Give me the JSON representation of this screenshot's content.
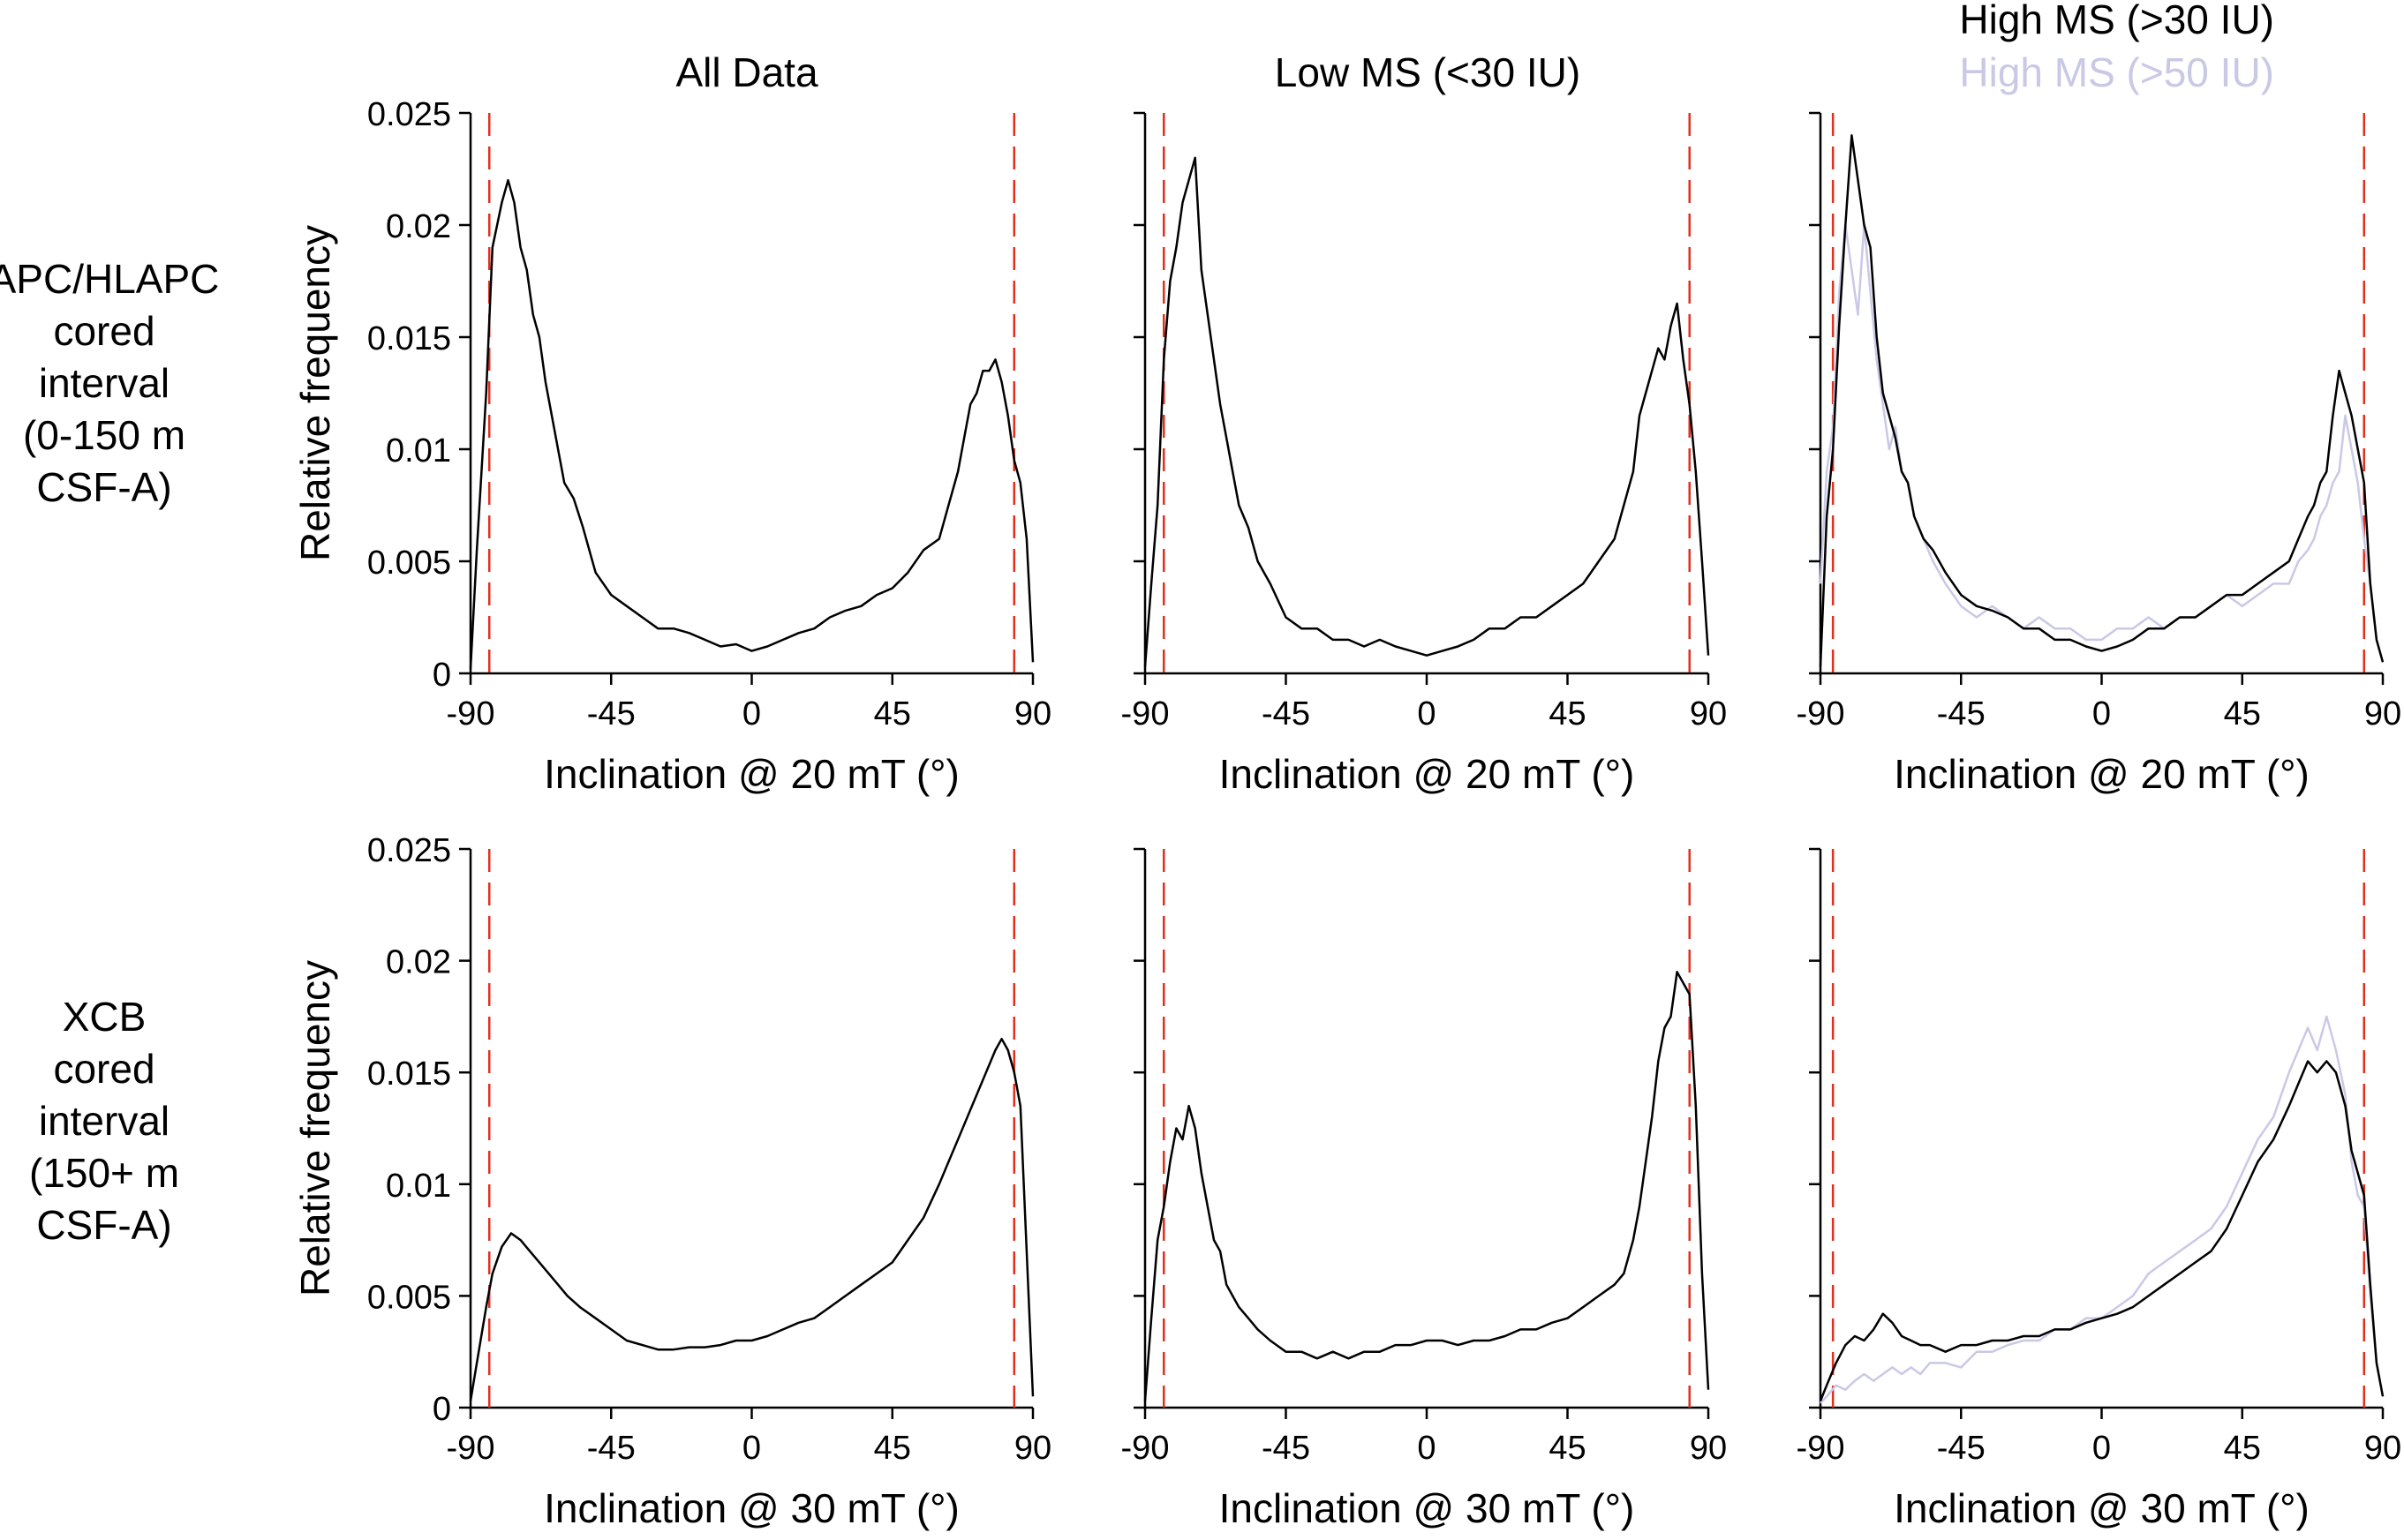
{
  "figure": {
    "row_labels": [
      [
        "APC/HLAPC",
        "cored",
        "interval",
        "(0-150 m",
        "CSF-A)"
      ],
      [
        "XCB",
        "cored",
        "interval",
        "(150+ m",
        "CSF-A)"
      ]
    ],
    "column_titles": [
      "All Data",
      "Low MS (<30 IU)"
    ],
    "legend": [
      {
        "label": "High MS (>30 IU)",
        "color": "#000000"
      },
      {
        "label": "High MS (>50 IU)",
        "color": "#c9c9e6"
      }
    ],
    "colors": {
      "line": "#000000",
      "line_alt": "#c9c9e6",
      "reference": "#e0301e"
    }
  },
  "chart_data": [
    {
      "type": "line",
      "row": 0,
      "col": 0,
      "xlabel": "Inclination @ 20 mT (°)",
      "ylabel": "Relative frequency",
      "xlim": [
        -90,
        90
      ],
      "ylim": [
        0,
        0.025
      ],
      "xticks": [
        "-90",
        "-45",
        "0",
        "45",
        "90"
      ],
      "yticks": [
        "0",
        "0.005",
        "0.01",
        "0.015",
        "0.02",
        "0.025"
      ],
      "reference_lines": [
        -84,
        84
      ],
      "series": [
        {
          "name": "All Data",
          "color": "#000000",
          "x": [
            -90,
            -88,
            -85,
            -83,
            -80,
            -78,
            -76,
            -74,
            -72,
            -70,
            -68,
            -66,
            -64,
            -62,
            -60,
            -57,
            -54,
            -50,
            -45,
            -40,
            -35,
            -30,
            -25,
            -20,
            -15,
            -10,
            -5,
            0,
            5,
            10,
            15,
            20,
            25,
            30,
            35,
            40,
            45,
            50,
            55,
            60,
            63,
            66,
            68,
            70,
            72,
            74,
            76,
            78,
            80,
            82,
            84,
            86,
            88,
            90
          ],
          "y": [
            0.0002,
            0.0055,
            0.0125,
            0.019,
            0.021,
            0.022,
            0.021,
            0.019,
            0.018,
            0.016,
            0.015,
            0.013,
            0.0115,
            0.01,
            0.0085,
            0.0078,
            0.0065,
            0.0045,
            0.0035,
            0.003,
            0.0025,
            0.002,
            0.002,
            0.0018,
            0.0015,
            0.0012,
            0.0013,
            0.001,
            0.0012,
            0.0015,
            0.0018,
            0.002,
            0.0025,
            0.0028,
            0.003,
            0.0035,
            0.0038,
            0.0045,
            0.0055,
            0.006,
            0.0075,
            0.009,
            0.0105,
            0.012,
            0.0125,
            0.0135,
            0.0135,
            0.014,
            0.013,
            0.0115,
            0.0095,
            0.0085,
            0.006,
            0.0005
          ]
        }
      ]
    },
    {
      "type": "line",
      "row": 0,
      "col": 1,
      "xlabel": "Inclination @ 20 mT (°)",
      "ylabel": "",
      "xlim": [
        -90,
        90
      ],
      "ylim": [
        0,
        0.025
      ],
      "xticks": [
        "-90",
        "-45",
        "0",
        "45",
        "90"
      ],
      "yticks": [],
      "reference_lines": [
        -84,
        84
      ],
      "series": [
        {
          "name": "Low MS (<30 IU)",
          "color": "#000000",
          "x": [
            -90,
            -88,
            -86,
            -84,
            -82,
            -80,
            -78,
            -76,
            -74,
            -72,
            -70,
            -68,
            -66,
            -64,
            -62,
            -60,
            -57,
            -54,
            -50,
            -45,
            -40,
            -35,
            -30,
            -25,
            -20,
            -15,
            -10,
            -5,
            0,
            5,
            10,
            15,
            20,
            25,
            30,
            35,
            40,
            45,
            50,
            55,
            60,
            63,
            66,
            68,
            70,
            72,
            74,
            76,
            78,
            80,
            82,
            84,
            86,
            88,
            90
          ],
          "y": [
            0.0003,
            0.004,
            0.0075,
            0.014,
            0.0175,
            0.019,
            0.021,
            0.022,
            0.023,
            0.018,
            0.016,
            0.014,
            0.012,
            0.0105,
            0.009,
            0.0075,
            0.0065,
            0.005,
            0.004,
            0.0025,
            0.002,
            0.002,
            0.0015,
            0.0015,
            0.0012,
            0.0015,
            0.0012,
            0.001,
            0.0008,
            0.001,
            0.0012,
            0.0015,
            0.002,
            0.002,
            0.0025,
            0.0025,
            0.003,
            0.0035,
            0.004,
            0.005,
            0.006,
            0.0075,
            0.009,
            0.0115,
            0.0125,
            0.0135,
            0.0145,
            0.014,
            0.0155,
            0.0165,
            0.014,
            0.012,
            0.009,
            0.005,
            0.0008
          ]
        }
      ]
    },
    {
      "type": "line",
      "row": 0,
      "col": 2,
      "xlabel": "Inclination @ 20 mT (°)",
      "ylabel": "",
      "xlim": [
        -90,
        90
      ],
      "ylim": [
        0,
        0.025
      ],
      "xticks": [
        "-90",
        "-45",
        "0",
        "45",
        "90"
      ],
      "yticks": [],
      "reference_lines": [
        -86,
        84
      ],
      "series": [
        {
          "name": "High MS (>50 IU)",
          "color": "#c9c9e6",
          "x": [
            -90,
            -88,
            -86,
            -84,
            -82,
            -80,
            -78,
            -76,
            -74,
            -72,
            -70,
            -68,
            -66,
            -64,
            -62,
            -60,
            -57,
            -54,
            -50,
            -45,
            -40,
            -35,
            -30,
            -25,
            -20,
            -15,
            -10,
            -5,
            0,
            5,
            10,
            15,
            20,
            25,
            30,
            35,
            40,
            45,
            50,
            55,
            60,
            63,
            66,
            68,
            70,
            72,
            74,
            76,
            78,
            80,
            82,
            84,
            86,
            88,
            90
          ],
          "y": [
            0.004,
            0.009,
            0.011,
            0.017,
            0.02,
            0.018,
            0.016,
            0.02,
            0.017,
            0.014,
            0.012,
            0.01,
            0.011,
            0.009,
            0.0085,
            0.007,
            0.006,
            0.005,
            0.004,
            0.003,
            0.0025,
            0.003,
            0.0025,
            0.002,
            0.0025,
            0.002,
            0.002,
            0.0015,
            0.0015,
            0.002,
            0.002,
            0.0025,
            0.002,
            0.0025,
            0.0025,
            0.003,
            0.0035,
            0.003,
            0.0035,
            0.004,
            0.004,
            0.005,
            0.0055,
            0.006,
            0.007,
            0.0075,
            0.0085,
            0.009,
            0.0115,
            0.01,
            0.0085,
            0.006,
            0.004,
            0.0015,
            0.0005
          ]
        },
        {
          "name": "High MS (>30 IU)",
          "color": "#000000",
          "x": [
            -90,
            -88,
            -86,
            -84,
            -82,
            -80,
            -78,
            -76,
            -74,
            -72,
            -70,
            -68,
            -66,
            -64,
            -62,
            -60,
            -57,
            -54,
            -50,
            -45,
            -40,
            -35,
            -30,
            -25,
            -20,
            -15,
            -10,
            -5,
            0,
            5,
            10,
            15,
            20,
            25,
            30,
            35,
            40,
            45,
            50,
            55,
            60,
            63,
            66,
            68,
            70,
            72,
            74,
            76,
            78,
            80,
            82,
            84,
            86,
            88,
            90
          ],
          "y": [
            0.0003,
            0.007,
            0.01,
            0.0155,
            0.02,
            0.024,
            0.022,
            0.02,
            0.019,
            0.015,
            0.0125,
            0.0115,
            0.0105,
            0.009,
            0.0085,
            0.007,
            0.006,
            0.0055,
            0.0045,
            0.0035,
            0.003,
            0.0028,
            0.0025,
            0.002,
            0.002,
            0.0015,
            0.0015,
            0.0012,
            0.001,
            0.0012,
            0.0015,
            0.002,
            0.002,
            0.0025,
            0.0025,
            0.003,
            0.0035,
            0.0035,
            0.004,
            0.0045,
            0.005,
            0.006,
            0.007,
            0.0075,
            0.0085,
            0.009,
            0.0115,
            0.0135,
            0.0125,
            0.0115,
            0.01,
            0.0085,
            0.004,
            0.0015,
            0.0005
          ]
        }
      ]
    },
    {
      "type": "line",
      "row": 1,
      "col": 0,
      "xlabel": "Inclination @ 30 mT (°)",
      "ylabel": "Relative frequency",
      "xlim": [
        -90,
        90
      ],
      "ylim": [
        0,
        0.025
      ],
      "xticks": [
        "-90",
        "-45",
        "0",
        "45",
        "90"
      ],
      "yticks": [
        "0",
        "0.005",
        "0.01",
        "0.015",
        "0.02",
        "0.025"
      ],
      "reference_lines": [
        -84,
        84
      ],
      "series": [
        {
          "name": "All Data",
          "color": "#000000",
          "x": [
            -90,
            -88,
            -85,
            -83,
            -80,
            -77,
            -74,
            -71,
            -68,
            -65,
            -62,
            -59,
            -55,
            -50,
            -45,
            -40,
            -35,
            -30,
            -25,
            -20,
            -15,
            -10,
            -5,
            0,
            5,
            10,
            15,
            20,
            25,
            30,
            35,
            40,
            45,
            50,
            55,
            60,
            63,
            66,
            69,
            72,
            75,
            78,
            80,
            82,
            84,
            86,
            88,
            90
          ],
          "y": [
            0.0003,
            0.002,
            0.0045,
            0.006,
            0.0072,
            0.0078,
            0.0075,
            0.007,
            0.0065,
            0.006,
            0.0055,
            0.005,
            0.0045,
            0.004,
            0.0035,
            0.003,
            0.0028,
            0.0026,
            0.0026,
            0.0027,
            0.0027,
            0.0028,
            0.003,
            0.003,
            0.0032,
            0.0035,
            0.0038,
            0.004,
            0.0045,
            0.005,
            0.0055,
            0.006,
            0.0065,
            0.0075,
            0.0085,
            0.01,
            0.011,
            0.012,
            0.013,
            0.014,
            0.015,
            0.016,
            0.0165,
            0.016,
            0.015,
            0.0135,
            0.007,
            0.0005
          ]
        }
      ]
    },
    {
      "type": "line",
      "row": 1,
      "col": 1,
      "xlabel": "Inclination @ 30 mT (°)",
      "ylabel": "",
      "xlim": [
        -90,
        90
      ],
      "ylim": [
        0,
        0.025
      ],
      "xticks": [
        "-90",
        "-45",
        "0",
        "45",
        "90"
      ],
      "yticks": [],
      "reference_lines": [
        -84,
        84
      ],
      "series": [
        {
          "name": "Low MS (<30 IU)",
          "color": "#000000",
          "x": [
            -90,
            -88,
            -86,
            -84,
            -82,
            -80,
            -78,
            -76,
            -74,
            -72,
            -70,
            -68,
            -66,
            -64,
            -62,
            -60,
            -57,
            -54,
            -50,
            -45,
            -40,
            -35,
            -30,
            -25,
            -20,
            -15,
            -10,
            -5,
            0,
            5,
            10,
            15,
            20,
            25,
            30,
            35,
            40,
            45,
            50,
            55,
            60,
            63,
            66,
            68,
            70,
            72,
            74,
            76,
            78,
            80,
            82,
            84,
            86,
            88,
            90
          ],
          "y": [
            0.0003,
            0.004,
            0.0075,
            0.009,
            0.011,
            0.0125,
            0.012,
            0.0135,
            0.0125,
            0.0105,
            0.009,
            0.0075,
            0.007,
            0.0055,
            0.005,
            0.0045,
            0.004,
            0.0035,
            0.003,
            0.0025,
            0.0025,
            0.0022,
            0.0025,
            0.0022,
            0.0025,
            0.0025,
            0.0028,
            0.0028,
            0.003,
            0.003,
            0.0028,
            0.003,
            0.003,
            0.0032,
            0.0035,
            0.0035,
            0.0038,
            0.004,
            0.0045,
            0.005,
            0.0055,
            0.006,
            0.0075,
            0.009,
            0.011,
            0.013,
            0.0155,
            0.017,
            0.0175,
            0.0195,
            0.019,
            0.0185,
            0.0135,
            0.006,
            0.0008
          ]
        }
      ]
    },
    {
      "type": "line",
      "row": 1,
      "col": 2,
      "xlabel": "Inclination @ 30 mT (°)",
      "ylabel": "",
      "xlim": [
        -90,
        90
      ],
      "ylim": [
        0,
        0.025
      ],
      "xticks": [
        "-90",
        "-45",
        "0",
        "45",
        "90"
      ],
      "yticks": [],
      "reference_lines": [
        -86,
        84
      ],
      "series": [
        {
          "name": "High MS (>50 IU)",
          "color": "#c9c9e6",
          "x": [
            -90,
            -88,
            -85,
            -82,
            -79,
            -76,
            -73,
            -70,
            -67,
            -64,
            -61,
            -58,
            -55,
            -50,
            -45,
            -40,
            -35,
            -30,
            -25,
            -20,
            -15,
            -10,
            -5,
            0,
            5,
            10,
            15,
            20,
            25,
            30,
            35,
            40,
            45,
            50,
            55,
            60,
            63,
            66,
            69,
            72,
            75,
            78,
            80,
            82,
            84,
            86,
            88,
            90
          ],
          "y": [
            0.0002,
            0.0005,
            0.001,
            0.0008,
            0.0012,
            0.0015,
            0.0012,
            0.0015,
            0.0018,
            0.0015,
            0.0018,
            0.0015,
            0.002,
            0.002,
            0.0018,
            0.0025,
            0.0025,
            0.0028,
            0.003,
            0.003,
            0.0035,
            0.0035,
            0.004,
            0.004,
            0.0045,
            0.005,
            0.006,
            0.0065,
            0.007,
            0.0075,
            0.008,
            0.009,
            0.0105,
            0.012,
            0.013,
            0.015,
            0.016,
            0.017,
            0.016,
            0.0175,
            0.016,
            0.014,
            0.011,
            0.0095,
            0.009,
            0.005,
            0.002,
            0.0005
          ]
        },
        {
          "name": "High MS (>30 IU)",
          "color": "#000000",
          "x": [
            -90,
            -88,
            -85,
            -82,
            -79,
            -76,
            -73,
            -70,
            -67,
            -64,
            -61,
            -58,
            -55,
            -50,
            -45,
            -40,
            -35,
            -30,
            -25,
            -20,
            -15,
            -10,
            -5,
            0,
            5,
            10,
            15,
            20,
            25,
            30,
            35,
            40,
            45,
            50,
            55,
            60,
            63,
            66,
            69,
            72,
            75,
            78,
            80,
            82,
            84,
            86,
            88,
            90
          ],
          "y": [
            0.0003,
            0.001,
            0.002,
            0.0028,
            0.0032,
            0.003,
            0.0035,
            0.0042,
            0.0038,
            0.0032,
            0.003,
            0.0028,
            0.0028,
            0.0025,
            0.0028,
            0.0028,
            0.003,
            0.003,
            0.0032,
            0.0032,
            0.0035,
            0.0035,
            0.0038,
            0.004,
            0.0042,
            0.0045,
            0.005,
            0.0055,
            0.006,
            0.0065,
            0.007,
            0.008,
            0.0095,
            0.011,
            0.012,
            0.0135,
            0.0145,
            0.0155,
            0.015,
            0.0155,
            0.015,
            0.0135,
            0.0115,
            0.0105,
            0.0095,
            0.0055,
            0.002,
            0.0005
          ]
        }
      ]
    }
  ]
}
